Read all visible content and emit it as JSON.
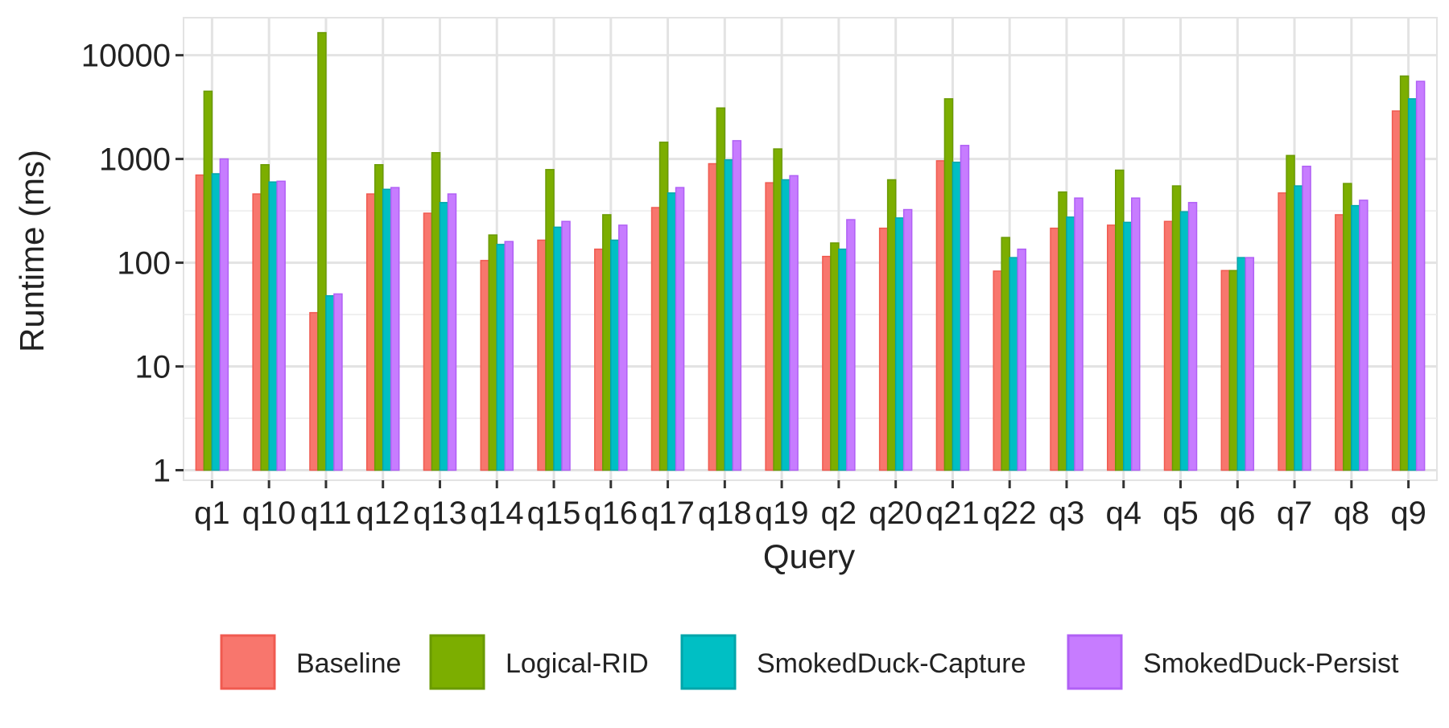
{
  "chart_data": {
    "type": "bar",
    "title": "",
    "xlabel": "Query",
    "ylabel": "Runtime (ms)",
    "y_scale": "log10",
    "ylim": [
      0.8,
      23000
    ],
    "grid": true,
    "legend_position": "bottom",
    "y_ticks": [
      {
        "value": 1,
        "label": "1"
      },
      {
        "value": 10,
        "label": "10"
      },
      {
        "value": 100,
        "label": "100"
      },
      {
        "value": 1000,
        "label": "1000"
      },
      {
        "value": 10000,
        "label": "10000"
      }
    ],
    "categories": [
      "q1",
      "q10",
      "q11",
      "q12",
      "q13",
      "q14",
      "q15",
      "q16",
      "q17",
      "q18",
      "q19",
      "q2",
      "q20",
      "q21",
      "q22",
      "q3",
      "q4",
      "q5",
      "q6",
      "q7",
      "q8",
      "q9"
    ],
    "series": [
      {
        "name": "Baseline",
        "fill": "#F8766D",
        "stroke": "#F05A50",
        "values": [
          700,
          460,
          33,
          460,
          300,
          105,
          165,
          135,
          340,
          900,
          590,
          115,
          215,
          960,
          83,
          215,
          230,
          250,
          84,
          470,
          290,
          2900
        ]
      },
      {
        "name": "Logical-RID",
        "fill": "#7CAE00",
        "stroke": "#6A9A00",
        "values": [
          4500,
          880,
          16500,
          880,
          1150,
          185,
          790,
          290,
          1450,
          3100,
          1250,
          155,
          630,
          3800,
          175,
          480,
          780,
          550,
          84,
          1080,
          580,
          6300
        ]
      },
      {
        "name": "SmokedDuck-Capture",
        "fill": "#00BFC4",
        "stroke": "#00A5AA",
        "values": [
          720,
          600,
          48,
          510,
          380,
          150,
          220,
          165,
          470,
          980,
          630,
          135,
          270,
          930,
          112,
          275,
          245,
          310,
          112,
          550,
          355,
          3800
        ]
      },
      {
        "name": "SmokedDuck-Persist",
        "fill": "#C77CFF",
        "stroke": "#B060F5",
        "values": [
          1000,
          610,
          50,
          530,
          460,
          160,
          250,
          230,
          530,
          1500,
          690,
          260,
          325,
          1350,
          135,
          420,
          420,
          380,
          112,
          850,
          400,
          5600
        ]
      }
    ]
  }
}
